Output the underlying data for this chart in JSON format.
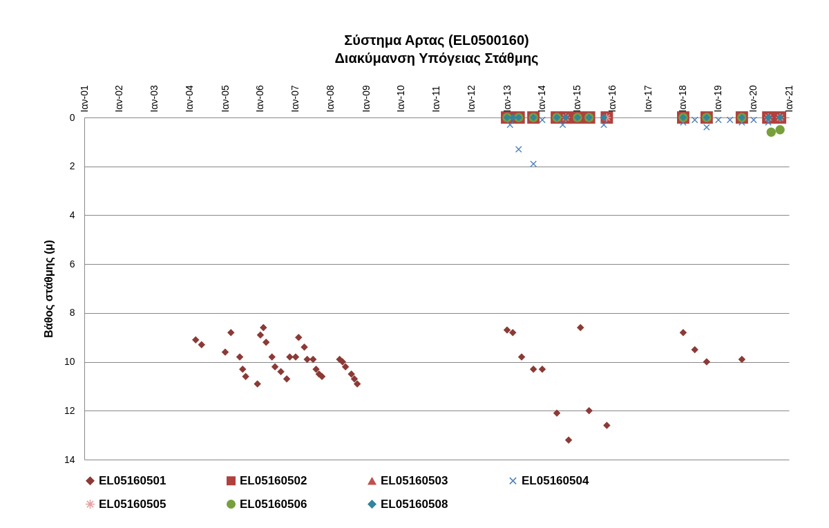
{
  "chart_data": {
    "type": "scatter",
    "title": "Σύστημα Αρτας (EL0500160)",
    "subtitle": "Διακύμανση Υπόγειας Στάθμης",
    "ylabel": "Βάθος στάθμης (μ)",
    "xlim": [
      "2001-01",
      "2021-01"
    ],
    "xticks": [
      {
        "value": "2001-01",
        "label": "Ιαν-01"
      },
      {
        "value": "2002-01",
        "label": "Ιαν-02"
      },
      {
        "value": "2003-01",
        "label": "Ιαν-03"
      },
      {
        "value": "2004-01",
        "label": "Ιαν-04"
      },
      {
        "value": "2005-01",
        "label": "Ιαν-05"
      },
      {
        "value": "2006-01",
        "label": "Ιαν-06"
      },
      {
        "value": "2007-01",
        "label": "Ιαν-07"
      },
      {
        "value": "2008-01",
        "label": "Ιαν-08"
      },
      {
        "value": "2009-01",
        "label": "Ιαν-09"
      },
      {
        "value": "2010-01",
        "label": "Ιαν-10"
      },
      {
        "value": "2011-01",
        "label": "Ιαν-11"
      },
      {
        "value": "2012-01",
        "label": "Ιαν-12"
      },
      {
        "value": "2013-01",
        "label": "Ιαν-13"
      },
      {
        "value": "2014-01",
        "label": "Ιαν-14"
      },
      {
        "value": "2015-01",
        "label": "Ιαν-15"
      },
      {
        "value": "2016-01",
        "label": "Ιαν-16"
      },
      {
        "value": "2017-01",
        "label": "Ιαν-17"
      },
      {
        "value": "2018-01",
        "label": "Ιαν-18"
      },
      {
        "value": "2019-01",
        "label": "Ιαν-19"
      },
      {
        "value": "2020-01",
        "label": "Ιαν-20"
      },
      {
        "value": "2021-01",
        "label": "Ιαν-21"
      }
    ],
    "ylim": [
      14,
      0
    ],
    "yticks": [
      0,
      2,
      4,
      6,
      8,
      10,
      12,
      14
    ],
    "grid": "y",
    "legend": "bottom",
    "series": [
      {
        "name": "EL05160501",
        "color": "#8b3a36",
        "marker": "diamond",
        "x": [
          "2004-03",
          "2004-05",
          "2005-01",
          "2005-03",
          "2005-06",
          "2005-07",
          "2005-08",
          "2005-12",
          "2006-01",
          "2006-02",
          "2006-03",
          "2006-05",
          "2006-06",
          "2006-08",
          "2006-10",
          "2006-11",
          "2007-01",
          "2007-02",
          "2007-04",
          "2007-05",
          "2007-07",
          "2007-08",
          "2007-09",
          "2007-10",
          "2008-04",
          "2008-05",
          "2008-06",
          "2008-08",
          "2008-09",
          "2008-10",
          "2013-01",
          "2013-03",
          "2013-06",
          "2013-10",
          "2014-01",
          "2014-06",
          "2014-10",
          "2015-02",
          "2015-05",
          "2015-11",
          "2018-01",
          "2018-05",
          "2018-09",
          "2019-09"
        ],
        "values": [
          9.1,
          9.3,
          9.6,
          8.8,
          9.8,
          10.3,
          10.6,
          10.9,
          8.9,
          8.6,
          9.2,
          9.8,
          10.2,
          10.4,
          10.7,
          9.8,
          9.8,
          9.0,
          9.4,
          9.9,
          9.9,
          10.3,
          10.5,
          10.6,
          9.9,
          10.0,
          10.2,
          10.5,
          10.7,
          10.9,
          8.7,
          8.8,
          9.8,
          10.3,
          10.3,
          12.1,
          13.2,
          8.6,
          12.0,
          12.6,
          8.8,
          9.5,
          10.0,
          9.9
        ]
      },
      {
        "name": "EL05160502",
        "color": "#b0413e",
        "marker": "square",
        "x": [
          "2013-01",
          "2013-05",
          "2013-10",
          "2014-06",
          "2014-09",
          "2015-01",
          "2015-05",
          "2015-11",
          "2018-01",
          "2018-09",
          "2019-09",
          "2020-06",
          "2020-10"
        ],
        "values": [
          0,
          0,
          0,
          0,
          0,
          0,
          0,
          0,
          0,
          0,
          0,
          0,
          0
        ]
      },
      {
        "name": "EL05160503",
        "color": "#c0504d",
        "marker": "triangle",
        "x": [
          "2013-01",
          "2013-05",
          "2013-10",
          "2014-06",
          "2014-09",
          "2015-01",
          "2015-05",
          "2015-11",
          "2018-01",
          "2018-09",
          "2019-09",
          "2020-06",
          "2020-10"
        ],
        "values": [
          0,
          0,
          0,
          0,
          0,
          0,
          0,
          0,
          0,
          0,
          0,
          0,
          0
        ]
      },
      {
        "name": "EL05160504",
        "color": "#4f81bd",
        "marker": "cross",
        "x": [
          "2013-02",
          "2013-05",
          "2013-10",
          "2014-01",
          "2014-08",
          "2015-10",
          "2018-01",
          "2018-05",
          "2018-09",
          "2019-01",
          "2019-05",
          "2019-09",
          "2020-01",
          "2020-06"
        ],
        "values": [
          0.3,
          1.3,
          1.9,
          0.1,
          0.3,
          0.3,
          0.2,
          0.1,
          0.4,
          0.1,
          0.1,
          0.2,
          0.1,
          0.2
        ]
      },
      {
        "name": "EL05160505",
        "color": "#e6a0a0",
        "marker": "star",
        "x": [
          "2014-09",
          "2015-11",
          "2020-06",
          "2020-10"
        ],
        "values": [
          0,
          0,
          0,
          0
        ]
      },
      {
        "name": "EL05160506",
        "color": "#77a03c",
        "marker": "circle",
        "x": [
          "2013-01",
          "2013-05",
          "2013-10",
          "2014-06",
          "2015-01",
          "2015-05",
          "2018-01",
          "2018-09",
          "2019-09",
          "2020-07",
          "2020-10"
        ],
        "values": [
          0,
          0,
          0,
          0,
          0,
          0,
          0,
          0,
          0,
          0.6,
          0.5
        ]
      },
      {
        "name": "EL05160508",
        "color": "#31859c",
        "marker": "diamond",
        "x": [
          "2013-01",
          "2013-03",
          "2013-05",
          "2013-10",
          "2014-06",
          "2014-09",
          "2015-01",
          "2015-05",
          "2015-10",
          "2018-01",
          "2018-09",
          "2019-09",
          "2020-06",
          "2020-10"
        ],
        "values": [
          0,
          0,
          0,
          0,
          0,
          0,
          0,
          0,
          0,
          0,
          0,
          0,
          0,
          0
        ]
      }
    ]
  }
}
